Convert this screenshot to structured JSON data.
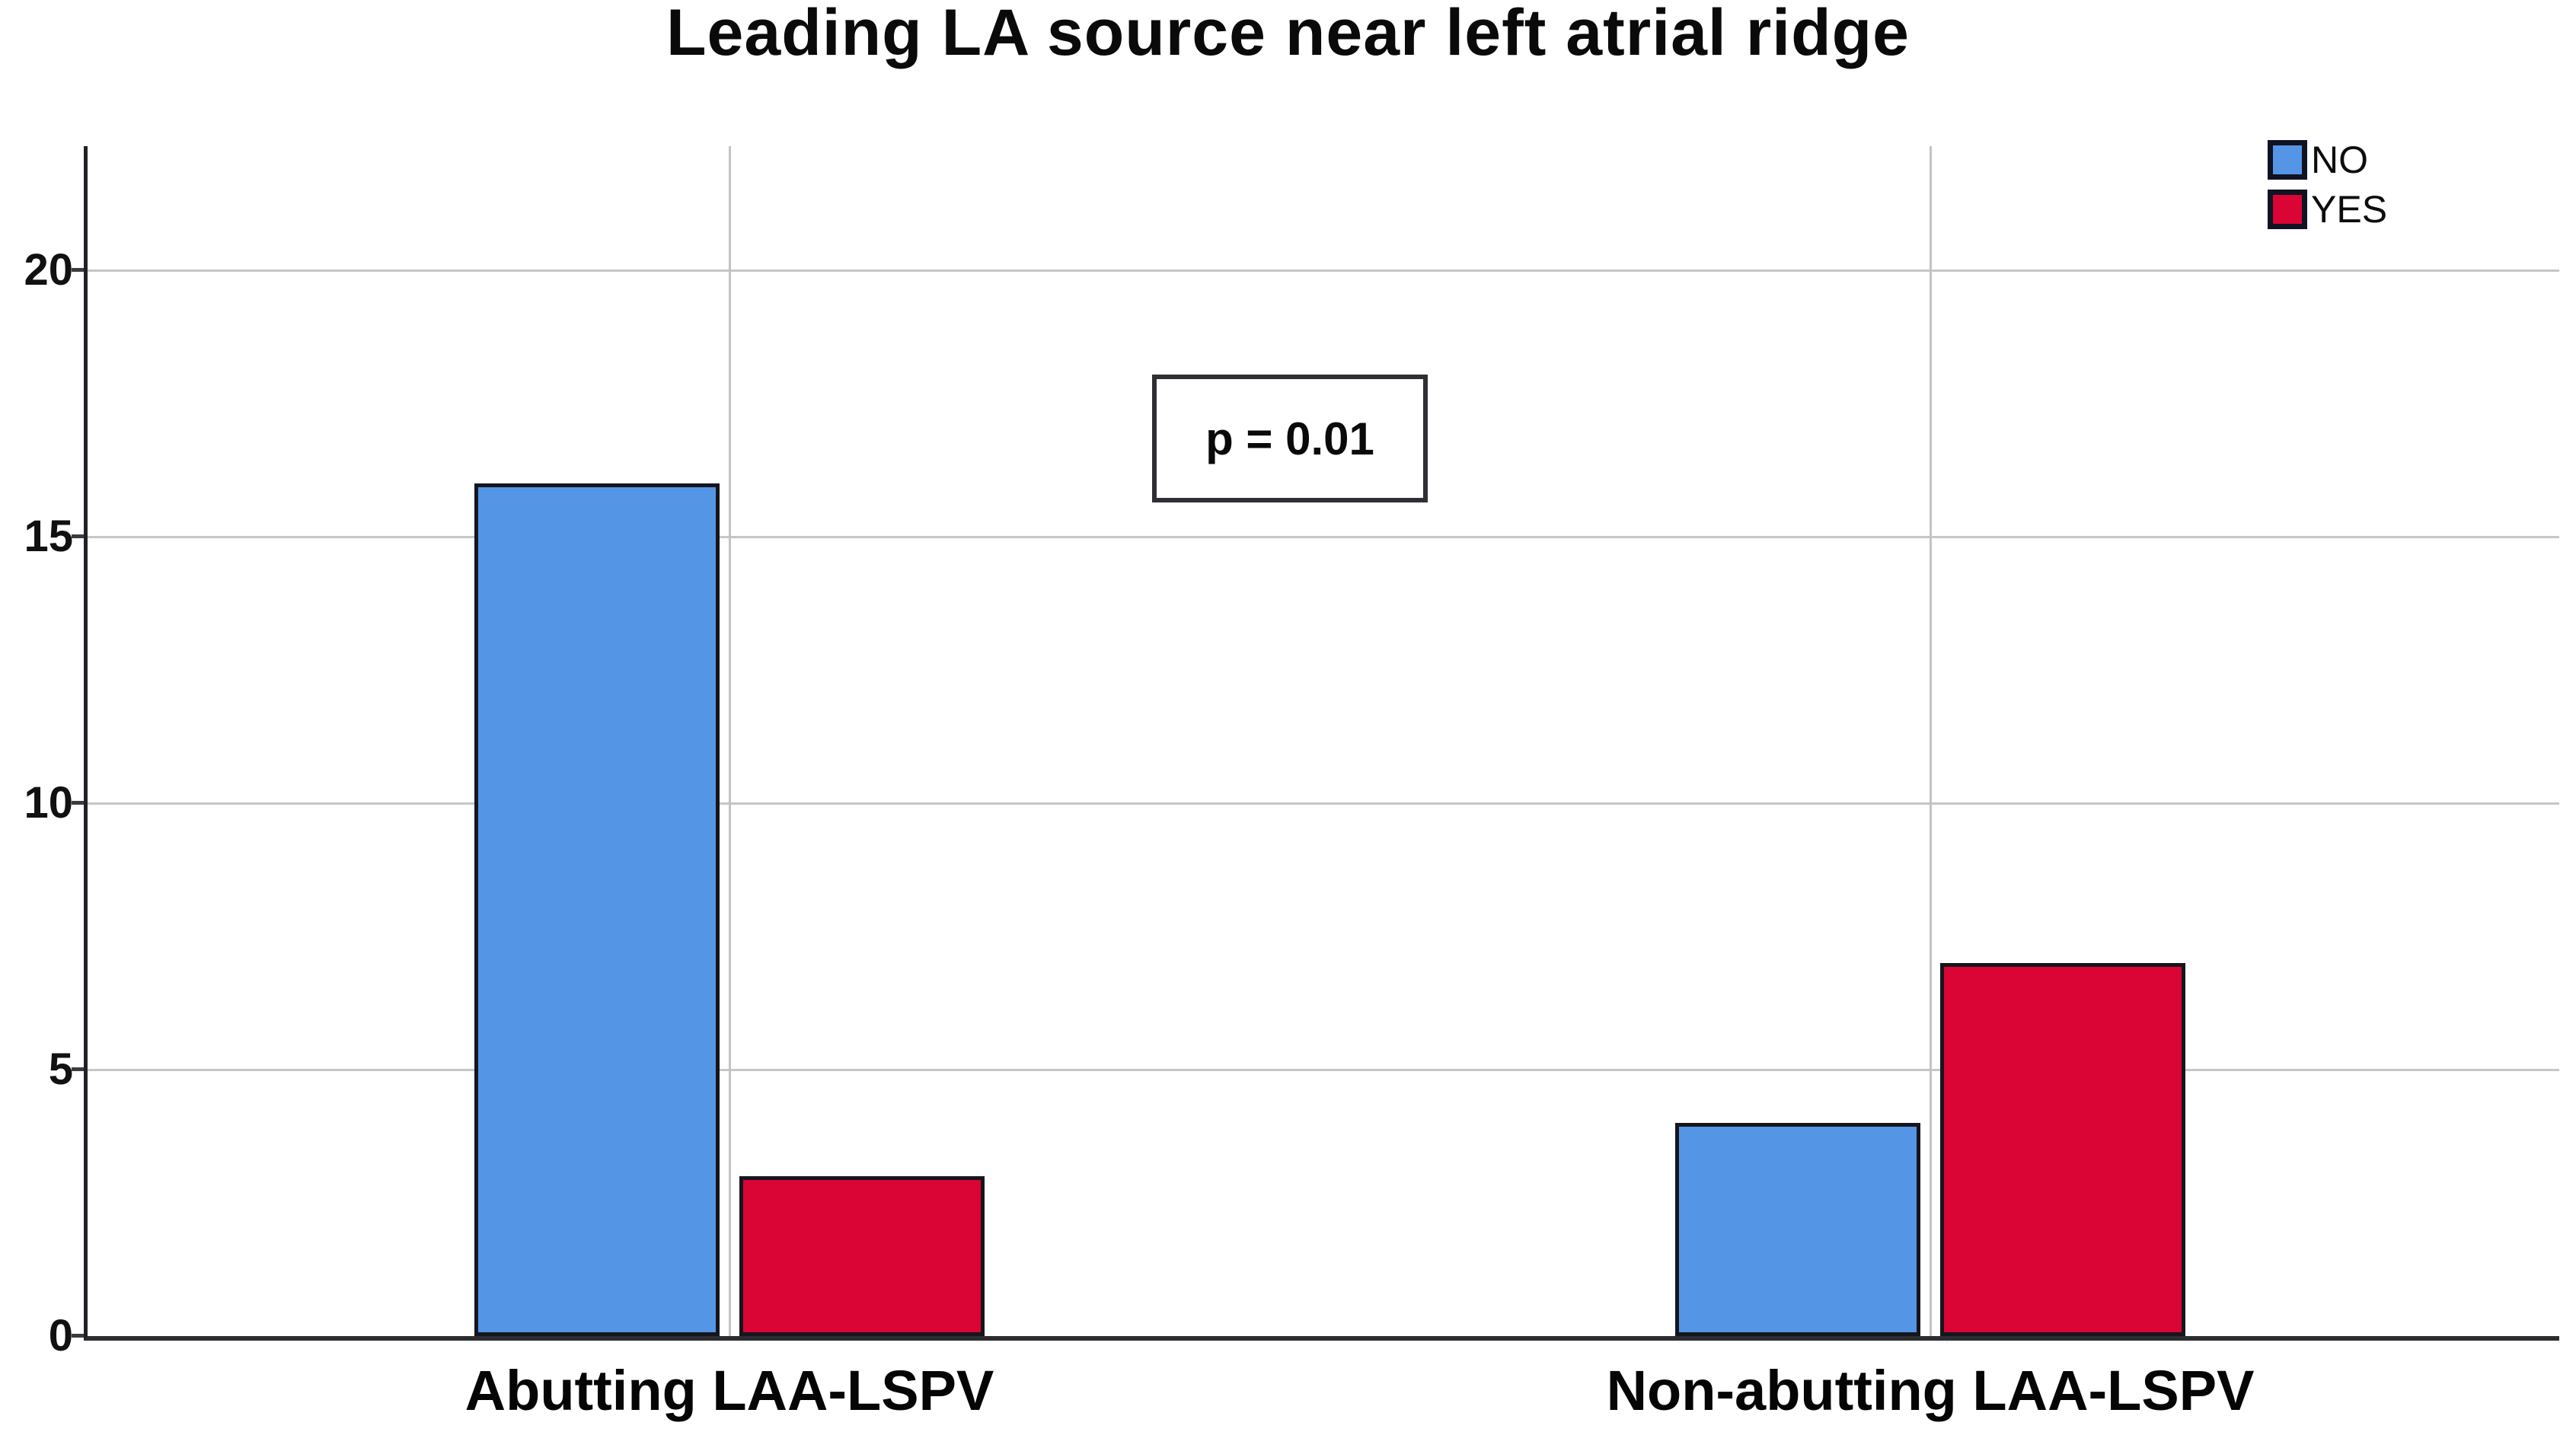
{
  "title": "Leading LA source near left atrial ridge",
  "annotation": {
    "p_label": "p = 0.01"
  },
  "colors": {
    "no_fill": "#5595e5",
    "yes_fill": "#da0435",
    "bar_border": "#15161d",
    "gridline": "#c6c6c6",
    "axis": "#2b2d30"
  },
  "chart_data": {
    "type": "bar",
    "title": "Leading LA source near left atrial ridge",
    "categories": [
      "Abutting LAA-LSPV",
      "Non-abutting LAA-LSPV"
    ],
    "series": [
      {
        "name": "NO",
        "color": "#5595e5",
        "values": [
          16,
          4
        ]
      },
      {
        "name": "YES",
        "color": "#da0435",
        "values": [
          3,
          7
        ]
      }
    ],
    "y_ticks": [
      0,
      5,
      10,
      15,
      20
    ],
    "ylim": [
      0,
      22.4
    ],
    "xlabel": "",
    "ylabel": "",
    "grid": true,
    "legend_position": "top-right",
    "annotation": "p = 0.01"
  }
}
